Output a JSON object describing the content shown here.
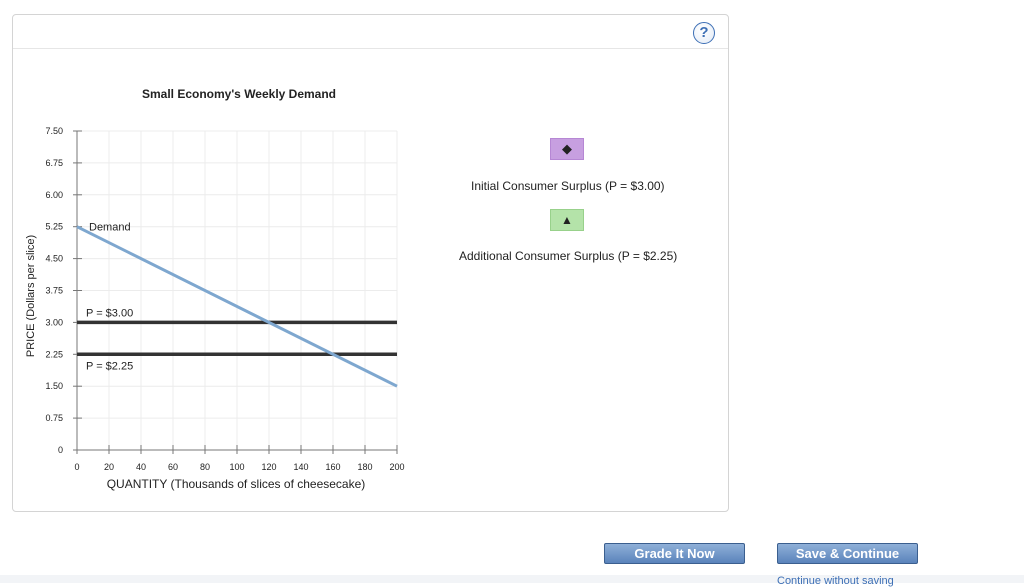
{
  "help": {
    "label": "?"
  },
  "legend": [
    {
      "label": "Initial Consumer Surplus (P = $3.00)",
      "color": "#c79fe0",
      "border": "#b687d4",
      "marker": "◆",
      "icon": "diamond-icon"
    },
    {
      "label": "Additional Consumer Surplus (P = $2.25)",
      "color": "#b4e3a9",
      "border": "#98d18b",
      "marker": "▲",
      "icon": "triangle-icon"
    }
  ],
  "buttons": {
    "grade": "Grade It Now",
    "save": "Save & Continue"
  },
  "links": {
    "continue": "Continue without saving"
  },
  "chart_data": {
    "type": "line",
    "title": "Small Economy's Weekly Demand",
    "xlabel": "QUANTITY (Thousands of slices of cheesecake)",
    "ylabel": "PRICE (Dollars per slice)",
    "xlim": [
      0,
      200
    ],
    "ylim": [
      0,
      7.5
    ],
    "xticks": [
      "0",
      "20",
      "40",
      "60",
      "80",
      "100",
      "120",
      "140",
      "160",
      "180",
      "200"
    ],
    "yticks": [
      "0",
      "0.75",
      "1.50",
      "2.25",
      "3.00",
      "3.75",
      "4.50",
      "5.25",
      "6.00",
      "6.75",
      "7.50"
    ],
    "grid": true,
    "series": [
      {
        "name": "Demand",
        "color": "#7ea7cf",
        "points": [
          [
            0,
            5.25
          ],
          [
            200,
            1.5
          ]
        ]
      }
    ],
    "hlines": [
      {
        "label": "P = $3.00",
        "y": 3.0,
        "color": "#333333"
      },
      {
        "label": "P = $2.25",
        "y": 2.25,
        "color": "#333333"
      }
    ]
  }
}
